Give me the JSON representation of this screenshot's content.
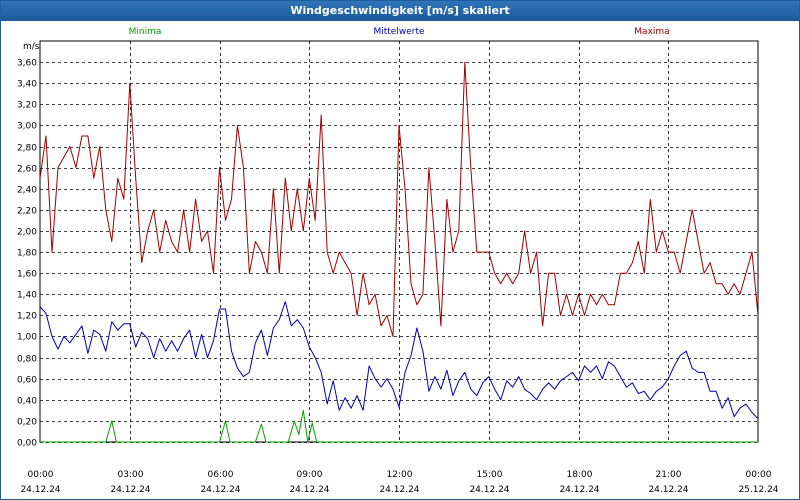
{
  "window": {
    "title": "Windgeschwindigkeit [m/s] skaliert"
  },
  "chart_data": {
    "type": "line",
    "title": "Windgeschwindigkeit [m/s] skaliert",
    "ylabel": "m/s",
    "ylim": [
      0,
      3.8
    ],
    "y_ticks": [
      "0,00",
      "0,20",
      "0,40",
      "0,60",
      "0,80",
      "1,00",
      "1,20",
      "1,40",
      "1,60",
      "1,80",
      "2,00",
      "2,20",
      "2,40",
      "2,60",
      "2,80",
      "3,00",
      "3,20",
      "3,40",
      "3,60"
    ],
    "x_ticks": [
      {
        "time": "00:00",
        "date": "24.12.24"
      },
      {
        "time": "03:00",
        "date": "24.12.24"
      },
      {
        "time": "06:00",
        "date": "24.12.24"
      },
      {
        "time": "09:00",
        "date": "24.12.24"
      },
      {
        "time": "12:00",
        "date": "24.12.24"
      },
      {
        "time": "15:00",
        "date": "24.12.24"
      },
      {
        "time": "18:00",
        "date": "24.12.24"
      },
      {
        "time": "21:00",
        "date": "24.12.24"
      },
      {
        "time": "00:00",
        "date": "25.12.24"
      }
    ],
    "grid": true,
    "legend": "top",
    "series": [
      {
        "name": "Minima",
        "color": "#00a000",
        "points": [
          [
            0,
            0
          ],
          [
            2.2,
            0
          ],
          [
            2.4,
            0.2
          ],
          [
            2.55,
            0
          ],
          [
            6.0,
            0
          ],
          [
            6.2,
            0.2
          ],
          [
            6.35,
            0
          ],
          [
            7.2,
            0
          ],
          [
            7.4,
            0.17
          ],
          [
            7.55,
            0
          ],
          [
            8.3,
            0
          ],
          [
            8.5,
            0.2
          ],
          [
            8.65,
            0.07
          ],
          [
            8.8,
            0.3
          ],
          [
            8.95,
            0
          ],
          [
            9.1,
            0.18
          ],
          [
            9.25,
            0
          ],
          [
            24,
            0
          ]
        ]
      },
      {
        "name": "Mittelwerte",
        "color": "#0000b0",
        "points": [
          [
            0,
            1.28
          ],
          [
            0.2,
            1.22
          ],
          [
            0.4,
            1.0
          ],
          [
            0.6,
            0.88
          ],
          [
            0.8,
            1.0
          ],
          [
            1.0,
            0.94
          ],
          [
            1.2,
            1.02
          ],
          [
            1.4,
            1.1
          ],
          [
            1.6,
            0.84
          ],
          [
            1.8,
            1.06
          ],
          [
            2.0,
            1.02
          ],
          [
            2.2,
            0.86
          ],
          [
            2.4,
            1.14
          ],
          [
            2.6,
            1.06
          ],
          [
            2.8,
            1.12
          ],
          [
            3.0,
            1.12
          ],
          [
            3.2,
            0.9
          ],
          [
            3.4,
            1.04
          ],
          [
            3.6,
            0.98
          ],
          [
            3.8,
            0.8
          ],
          [
            4.0,
            0.98
          ],
          [
            4.2,
            0.86
          ],
          [
            4.4,
            0.96
          ],
          [
            4.6,
            0.86
          ],
          [
            4.8,
            0.98
          ],
          [
            5.0,
            1.06
          ],
          [
            5.2,
            0.8
          ],
          [
            5.4,
            1.02
          ],
          [
            5.6,
            0.8
          ],
          [
            5.8,
            0.96
          ],
          [
            6.0,
            1.26
          ],
          [
            6.2,
            1.26
          ],
          [
            6.4,
            0.86
          ],
          [
            6.6,
            0.7
          ],
          [
            6.8,
            0.62
          ],
          [
            7.0,
            0.66
          ],
          [
            7.2,
            0.94
          ],
          [
            7.4,
            1.06
          ],
          [
            7.6,
            0.82
          ],
          [
            7.8,
            1.08
          ],
          [
            8.0,
            1.16
          ],
          [
            8.2,
            1.33
          ],
          [
            8.4,
            1.1
          ],
          [
            8.6,
            1.16
          ],
          [
            8.8,
            1.08
          ],
          [
            9.0,
            0.9
          ],
          [
            9.2,
            0.8
          ],
          [
            9.4,
            0.66
          ],
          [
            9.6,
            0.36
          ],
          [
            9.8,
            0.58
          ],
          [
            10.0,
            0.3
          ],
          [
            10.2,
            0.42
          ],
          [
            10.4,
            0.32
          ],
          [
            10.6,
            0.44
          ],
          [
            10.8,
            0.3
          ],
          [
            11.0,
            0.72
          ],
          [
            11.2,
            0.6
          ],
          [
            11.4,
            0.52
          ],
          [
            11.6,
            0.6
          ],
          [
            11.8,
            0.5
          ],
          [
            12.0,
            0.33
          ],
          [
            12.2,
            0.66
          ],
          [
            12.4,
            0.82
          ],
          [
            12.6,
            1.08
          ],
          [
            12.8,
            0.86
          ],
          [
            13.0,
            0.48
          ],
          [
            13.2,
            0.62
          ],
          [
            13.4,
            0.5
          ],
          [
            13.6,
            0.68
          ],
          [
            13.8,
            0.44
          ],
          [
            14.0,
            0.58
          ],
          [
            14.2,
            0.66
          ],
          [
            14.4,
            0.5
          ],
          [
            14.6,
            0.44
          ],
          [
            14.8,
            0.56
          ],
          [
            15.0,
            0.62
          ],
          [
            15.2,
            0.5
          ],
          [
            15.4,
            0.4
          ],
          [
            15.6,
            0.58
          ],
          [
            15.8,
            0.52
          ],
          [
            16.0,
            0.62
          ],
          [
            16.2,
            0.5
          ],
          [
            16.4,
            0.46
          ],
          [
            16.6,
            0.4
          ],
          [
            16.8,
            0.5
          ],
          [
            17.0,
            0.56
          ],
          [
            17.2,
            0.5
          ],
          [
            17.4,
            0.58
          ],
          [
            17.6,
            0.62
          ],
          [
            17.8,
            0.66
          ],
          [
            18.0,
            0.58
          ],
          [
            18.2,
            0.72
          ],
          [
            18.4,
            0.66
          ],
          [
            18.6,
            0.72
          ],
          [
            18.8,
            0.6
          ],
          [
            19.0,
            0.76
          ],
          [
            19.2,
            0.72
          ],
          [
            19.4,
            0.62
          ],
          [
            19.6,
            0.52
          ],
          [
            19.8,
            0.56
          ],
          [
            20.0,
            0.46
          ],
          [
            20.2,
            0.48
          ],
          [
            20.4,
            0.4
          ],
          [
            20.6,
            0.48
          ],
          [
            20.8,
            0.52
          ],
          [
            21.0,
            0.6
          ],
          [
            21.2,
            0.72
          ],
          [
            21.4,
            0.82
          ],
          [
            21.6,
            0.86
          ],
          [
            21.8,
            0.7
          ],
          [
            22.0,
            0.66
          ],
          [
            22.2,
            0.66
          ],
          [
            22.4,
            0.48
          ],
          [
            22.6,
            0.48
          ],
          [
            22.8,
            0.32
          ],
          [
            23.0,
            0.42
          ],
          [
            23.2,
            0.24
          ],
          [
            23.4,
            0.32
          ],
          [
            23.6,
            0.36
          ],
          [
            23.8,
            0.28
          ],
          [
            24.0,
            0.22
          ]
        ]
      },
      {
        "name": "Maxima",
        "color": "#a00000",
        "points": [
          [
            0,
            2.5
          ],
          [
            0.2,
            2.9
          ],
          [
            0.4,
            1.8
          ],
          [
            0.6,
            2.6
          ],
          [
            0.8,
            2.7
          ],
          [
            1.0,
            2.8
          ],
          [
            1.2,
            2.6
          ],
          [
            1.4,
            2.9
          ],
          [
            1.6,
            2.9
          ],
          [
            1.8,
            2.5
          ],
          [
            2.0,
            2.8
          ],
          [
            2.2,
            2.2
          ],
          [
            2.4,
            1.9
          ],
          [
            2.6,
            2.5
          ],
          [
            2.8,
            2.3
          ],
          [
            3.0,
            3.4
          ],
          [
            3.2,
            2.5
          ],
          [
            3.4,
            1.7
          ],
          [
            3.6,
            2.0
          ],
          [
            3.8,
            2.2
          ],
          [
            4.0,
            1.8
          ],
          [
            4.2,
            2.1
          ],
          [
            4.4,
            1.9
          ],
          [
            4.6,
            1.8
          ],
          [
            4.8,
            2.2
          ],
          [
            5.0,
            1.8
          ],
          [
            5.2,
            2.3
          ],
          [
            5.4,
            1.9
          ],
          [
            5.6,
            2.0
          ],
          [
            5.8,
            1.6
          ],
          [
            6.0,
            2.6
          ],
          [
            6.2,
            2.1
          ],
          [
            6.4,
            2.3
          ],
          [
            6.6,
            3.0
          ],
          [
            6.8,
            2.6
          ],
          [
            7.0,
            1.6
          ],
          [
            7.2,
            1.9
          ],
          [
            7.4,
            1.8
          ],
          [
            7.6,
            1.6
          ],
          [
            7.8,
            2.4
          ],
          [
            8.0,
            1.6
          ],
          [
            8.2,
            2.5
          ],
          [
            8.4,
            2.0
          ],
          [
            8.6,
            2.4
          ],
          [
            8.8,
            2.0
          ],
          [
            9.0,
            2.5
          ],
          [
            9.2,
            2.1
          ],
          [
            9.4,
            3.1
          ],
          [
            9.6,
            1.8
          ],
          [
            9.8,
            1.6
          ],
          [
            10.0,
            1.8
          ],
          [
            10.2,
            1.7
          ],
          [
            10.4,
            1.6
          ],
          [
            10.6,
            1.2
          ],
          [
            10.8,
            1.6
          ],
          [
            11.0,
            1.3
          ],
          [
            11.2,
            1.4
          ],
          [
            11.4,
            1.1
          ],
          [
            11.6,
            1.2
          ],
          [
            11.8,
            1.0
          ],
          [
            12.0,
            3.0
          ],
          [
            12.2,
            2.4
          ],
          [
            12.4,
            1.5
          ],
          [
            12.6,
            1.3
          ],
          [
            12.8,
            1.4
          ],
          [
            13.0,
            2.6
          ],
          [
            13.2,
            1.9
          ],
          [
            13.4,
            1.1
          ],
          [
            13.6,
            2.3
          ],
          [
            13.8,
            1.8
          ],
          [
            14.0,
            2.0
          ],
          [
            14.2,
            3.6
          ],
          [
            14.4,
            2.6
          ],
          [
            14.6,
            1.8
          ],
          [
            14.8,
            1.8
          ],
          [
            15.0,
            1.8
          ],
          [
            15.2,
            1.6
          ],
          [
            15.4,
            1.5
          ],
          [
            15.6,
            1.6
          ],
          [
            15.8,
            1.5
          ],
          [
            16.0,
            1.6
          ],
          [
            16.2,
            2.0
          ],
          [
            16.4,
            1.6
          ],
          [
            16.6,
            1.8
          ],
          [
            16.8,
            1.1
          ],
          [
            17.0,
            1.6
          ],
          [
            17.2,
            1.6
          ],
          [
            17.4,
            1.2
          ],
          [
            17.6,
            1.4
          ],
          [
            17.8,
            1.2
          ],
          [
            18.0,
            1.4
          ],
          [
            18.2,
            1.2
          ],
          [
            18.4,
            1.4
          ],
          [
            18.6,
            1.3
          ],
          [
            18.8,
            1.4
          ],
          [
            19.0,
            1.3
          ],
          [
            19.2,
            1.3
          ],
          [
            19.4,
            1.6
          ],
          [
            19.6,
            1.6
          ],
          [
            19.8,
            1.7
          ],
          [
            20.0,
            1.9
          ],
          [
            20.2,
            1.6
          ],
          [
            20.4,
            2.3
          ],
          [
            20.6,
            1.8
          ],
          [
            20.8,
            2.0
          ],
          [
            21.0,
            1.8
          ],
          [
            21.2,
            1.8
          ],
          [
            21.4,
            1.6
          ],
          [
            21.6,
            1.9
          ],
          [
            21.8,
            2.2
          ],
          [
            22.0,
            1.9
          ],
          [
            22.2,
            1.6
          ],
          [
            22.4,
            1.7
          ],
          [
            22.6,
            1.5
          ],
          [
            22.8,
            1.5
          ],
          [
            23.0,
            1.4
          ],
          [
            23.2,
            1.5
          ],
          [
            23.4,
            1.4
          ],
          [
            23.6,
            1.6
          ],
          [
            23.8,
            1.8
          ],
          [
            24.0,
            1.2
          ]
        ]
      }
    ]
  }
}
